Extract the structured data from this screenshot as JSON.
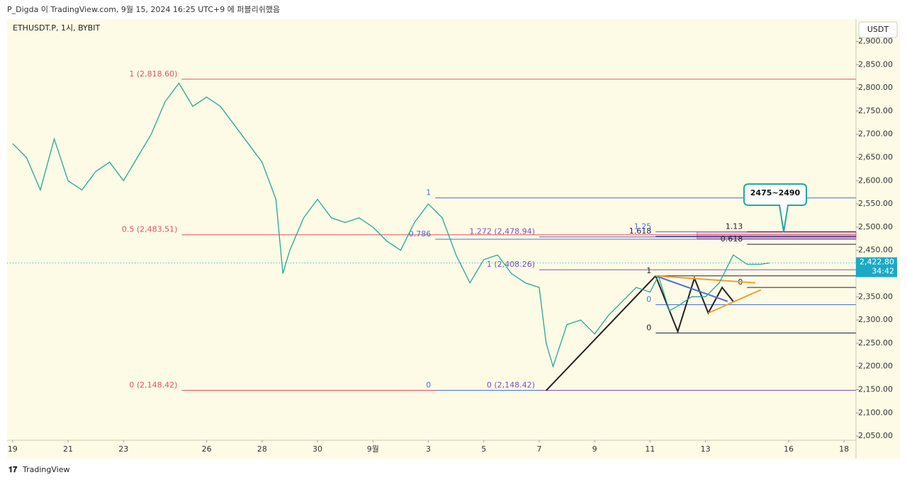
{
  "header": {
    "text": "P_Digda 이 TradingView.com, 9월 15, 2024 16:25 UTC+9 에 퍼블리쉬했음",
    "brand": "TradingView"
  },
  "chart_data": {
    "type": "line",
    "symbol": "ETHUSDT.P, 1시, BYBIT",
    "currency": "USDT",
    "color": "#26a69a",
    "x": [
      0,
      0.5,
      1,
      1.5,
      2,
      2.5,
      3,
      3.5,
      4,
      4.5,
      5,
      5.5,
      6,
      6.5,
      7,
      7.5,
      8,
      8.5,
      9,
      9.5,
      9.75,
      10,
      10.5,
      11,
      11.5,
      12,
      12.5,
      13,
      13.5,
      14,
      14.5,
      15,
      15.5,
      16,
      16.5,
      17,
      17.5,
      18,
      18.5,
      19,
      19.25,
      19.5,
      20,
      20.5,
      21,
      21.5,
      22,
      22.5,
      23,
      23.3,
      23.7,
      24,
      24.5,
      25,
      25.5,
      26,
      26.5,
      27,
      27.3
    ],
    "values": [
      2680,
      2650,
      2580,
      2690,
      2600,
      2580,
      2620,
      2640,
      2600,
      2650,
      2700,
      2770,
      2810,
      2760,
      2780,
      2760,
      2720,
      2680,
      2640,
      2560,
      2400,
      2450,
      2520,
      2560,
      2520,
      2510,
      2520,
      2500,
      2470,
      2450,
      2510,
      2550,
      2520,
      2440,
      2380,
      2430,
      2440,
      2400,
      2380,
      2370,
      2250,
      2200,
      2290,
      2300,
      2270,
      2310,
      2340,
      2370,
      2360,
      2395,
      2320,
      2330,
      2350,
      2350,
      2380,
      2440,
      2420,
      2420,
      2422.8
    ],
    "xlim": [
      -0.2,
      30.43
    ],
    "ylim": [
      2041,
      2948
    ],
    "xticks": [
      {
        "value": 0,
        "label": "19"
      },
      {
        "value": 2,
        "label": "21"
      },
      {
        "value": 4,
        "label": "23"
      },
      {
        "value": 7,
        "label": "26"
      },
      {
        "value": 9,
        "label": "28"
      },
      {
        "value": 11,
        "label": "30"
      },
      {
        "value": 13,
        "label": "9월"
      },
      {
        "value": 15,
        "label": "3"
      },
      {
        "value": 17,
        "label": "5"
      },
      {
        "value": 19,
        "label": "7"
      },
      {
        "value": 21,
        "label": "9"
      },
      {
        "value": 23,
        "label": "11"
      },
      {
        "value": 25,
        "label": "13"
      },
      {
        "value": 28,
        "label": "16"
      },
      {
        "value": 30,
        "label": "18"
      }
    ],
    "yticks": [
      {
        "value": 2050,
        "label": "2,050.00"
      },
      {
        "value": 2100,
        "label": "2,100.00"
      },
      {
        "value": 2150,
        "label": "2,150.00"
      },
      {
        "value": 2200,
        "label": "2,200.00"
      },
      {
        "value": 2250,
        "label": "2,250.00"
      },
      {
        "value": 2300,
        "label": "2,300.00"
      },
      {
        "value": 2350,
        "label": "2,350.00"
      },
      {
        "value": 2400,
        "label": "2,400.00"
      },
      {
        "value": 2450,
        "label": "2,450.00"
      },
      {
        "value": 2500,
        "label": "2,500.00"
      },
      {
        "value": 2550,
        "label": "2,550.00"
      },
      {
        "value": 2600,
        "label": "2,600.00"
      },
      {
        "value": 2650,
        "label": "2,650.00"
      },
      {
        "value": 2700,
        "label": "2,700.00"
      },
      {
        "value": 2750,
        "label": "2,750.00"
      },
      {
        "value": 2800,
        "label": "2,800.00"
      },
      {
        "value": 2850,
        "label": "2,850.00"
      },
      {
        "value": 2900,
        "label": "2,900.00"
      }
    ],
    "levels": [
      {
        "label": "1 (2,818.60)",
        "value": 2818.6,
        "color": "#e05260",
        "from": 6.1
      },
      {
        "label": "0.5 (2,483.51)",
        "value": 2483.51,
        "color": "#e05260",
        "from": 6.1
      },
      {
        "label": "0 (2,148.42)",
        "value": 2148.42,
        "color": "#e05260",
        "from": 6.1
      },
      {
        "label": "1",
        "value": 2563,
        "color": "#4a6fd8",
        "from": 15.25
      },
      {
        "label": "0.786",
        "value": 2474,
        "color": "#4a6fd8",
        "from": 15.25
      },
      {
        "label": "0",
        "value": 2148.42,
        "color": "#4a6fd8",
        "from": 15.25
      },
      {
        "label": "1.272 (2,478.94)",
        "value": 2478.94,
        "color": "#7a4fc0",
        "from": 19
      },
      {
        "label": "1 (2,408.26)",
        "value": 2408.26,
        "color": "#7a4fc0",
        "from": 19
      },
      {
        "label": "0 (2,148.42)",
        "value": 2148.42,
        "color": "#7a4fc0",
        "from": 19
      },
      {
        "label": "1.618",
        "value": 2480,
        "color": "#1e1e60",
        "from": 23.2
      },
      {
        "label": "1.25",
        "value": 2490,
        "color": "#4a6fd8",
        "from": 23.2
      },
      {
        "label": "1",
        "value": 2395,
        "color": "#222222",
        "from": 23.2
      },
      {
        "label": "0",
        "value": 2272,
        "color": "#222222",
        "from": 23.2
      },
      {
        "label": "0",
        "value": 2333,
        "color": "#4a6fd8",
        "from": 23.2
      },
      {
        "label": "1.13",
        "value": 2490,
        "color": "#222222",
        "from": 26.5
      },
      {
        "label": "0",
        "value": 2370,
        "color": "#222222",
        "from": 26.5
      },
      {
        "label": "0.618",
        "value": 2463,
        "color": "#222222",
        "from": 26.5
      }
    ],
    "trendlines": [
      {
        "color": "#222222",
        "points": [
          [
            19.25,
            2148
          ],
          [
            23.2,
            2395
          ]
        ]
      },
      {
        "color": "#222222",
        "points": [
          [
            23.2,
            2395
          ],
          [
            24,
            2275
          ],
          [
            24.6,
            2390
          ],
          [
            25.1,
            2315
          ],
          [
            25.6,
            2370
          ],
          [
            26,
            2340
          ]
        ]
      },
      {
        "color": "#4a6fd8",
        "points": [
          [
            23.2,
            2395
          ],
          [
            25.8,
            2340
          ]
        ]
      },
      {
        "color": "#f0a030",
        "points": [
          [
            23.2,
            2395
          ],
          [
            26.8,
            2380
          ]
        ]
      },
      {
        "color": "#f0a030",
        "points": [
          [
            25.1,
            2315
          ],
          [
            27,
            2365
          ]
        ]
      }
    ],
    "zone": {
      "low": 2475,
      "high": 2490,
      "from": 24.7,
      "color": "#e8a0c8"
    },
    "callout": {
      "label": "2475~2490",
      "value": 2490
    },
    "last": {
      "value": 2422.8,
      "label": "2,422.80",
      "countdown": "34:42",
      "color": "#1ba9c4"
    }
  }
}
